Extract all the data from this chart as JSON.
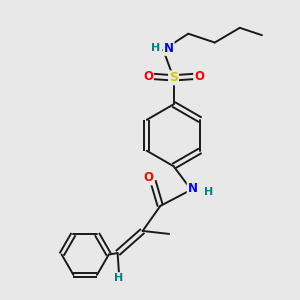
{
  "background_color": "#e8e8e8",
  "bond_color": "#1a1a1a",
  "N_color": "#0000ff",
  "O_color": "#ff0000",
  "S_color": "#cccc00",
  "H_color": "#008080",
  "figsize": [
    3.0,
    3.0
  ],
  "dpi": 100,
  "xlim": [
    0,
    10
  ],
  "ylim": [
    0,
    10
  ]
}
